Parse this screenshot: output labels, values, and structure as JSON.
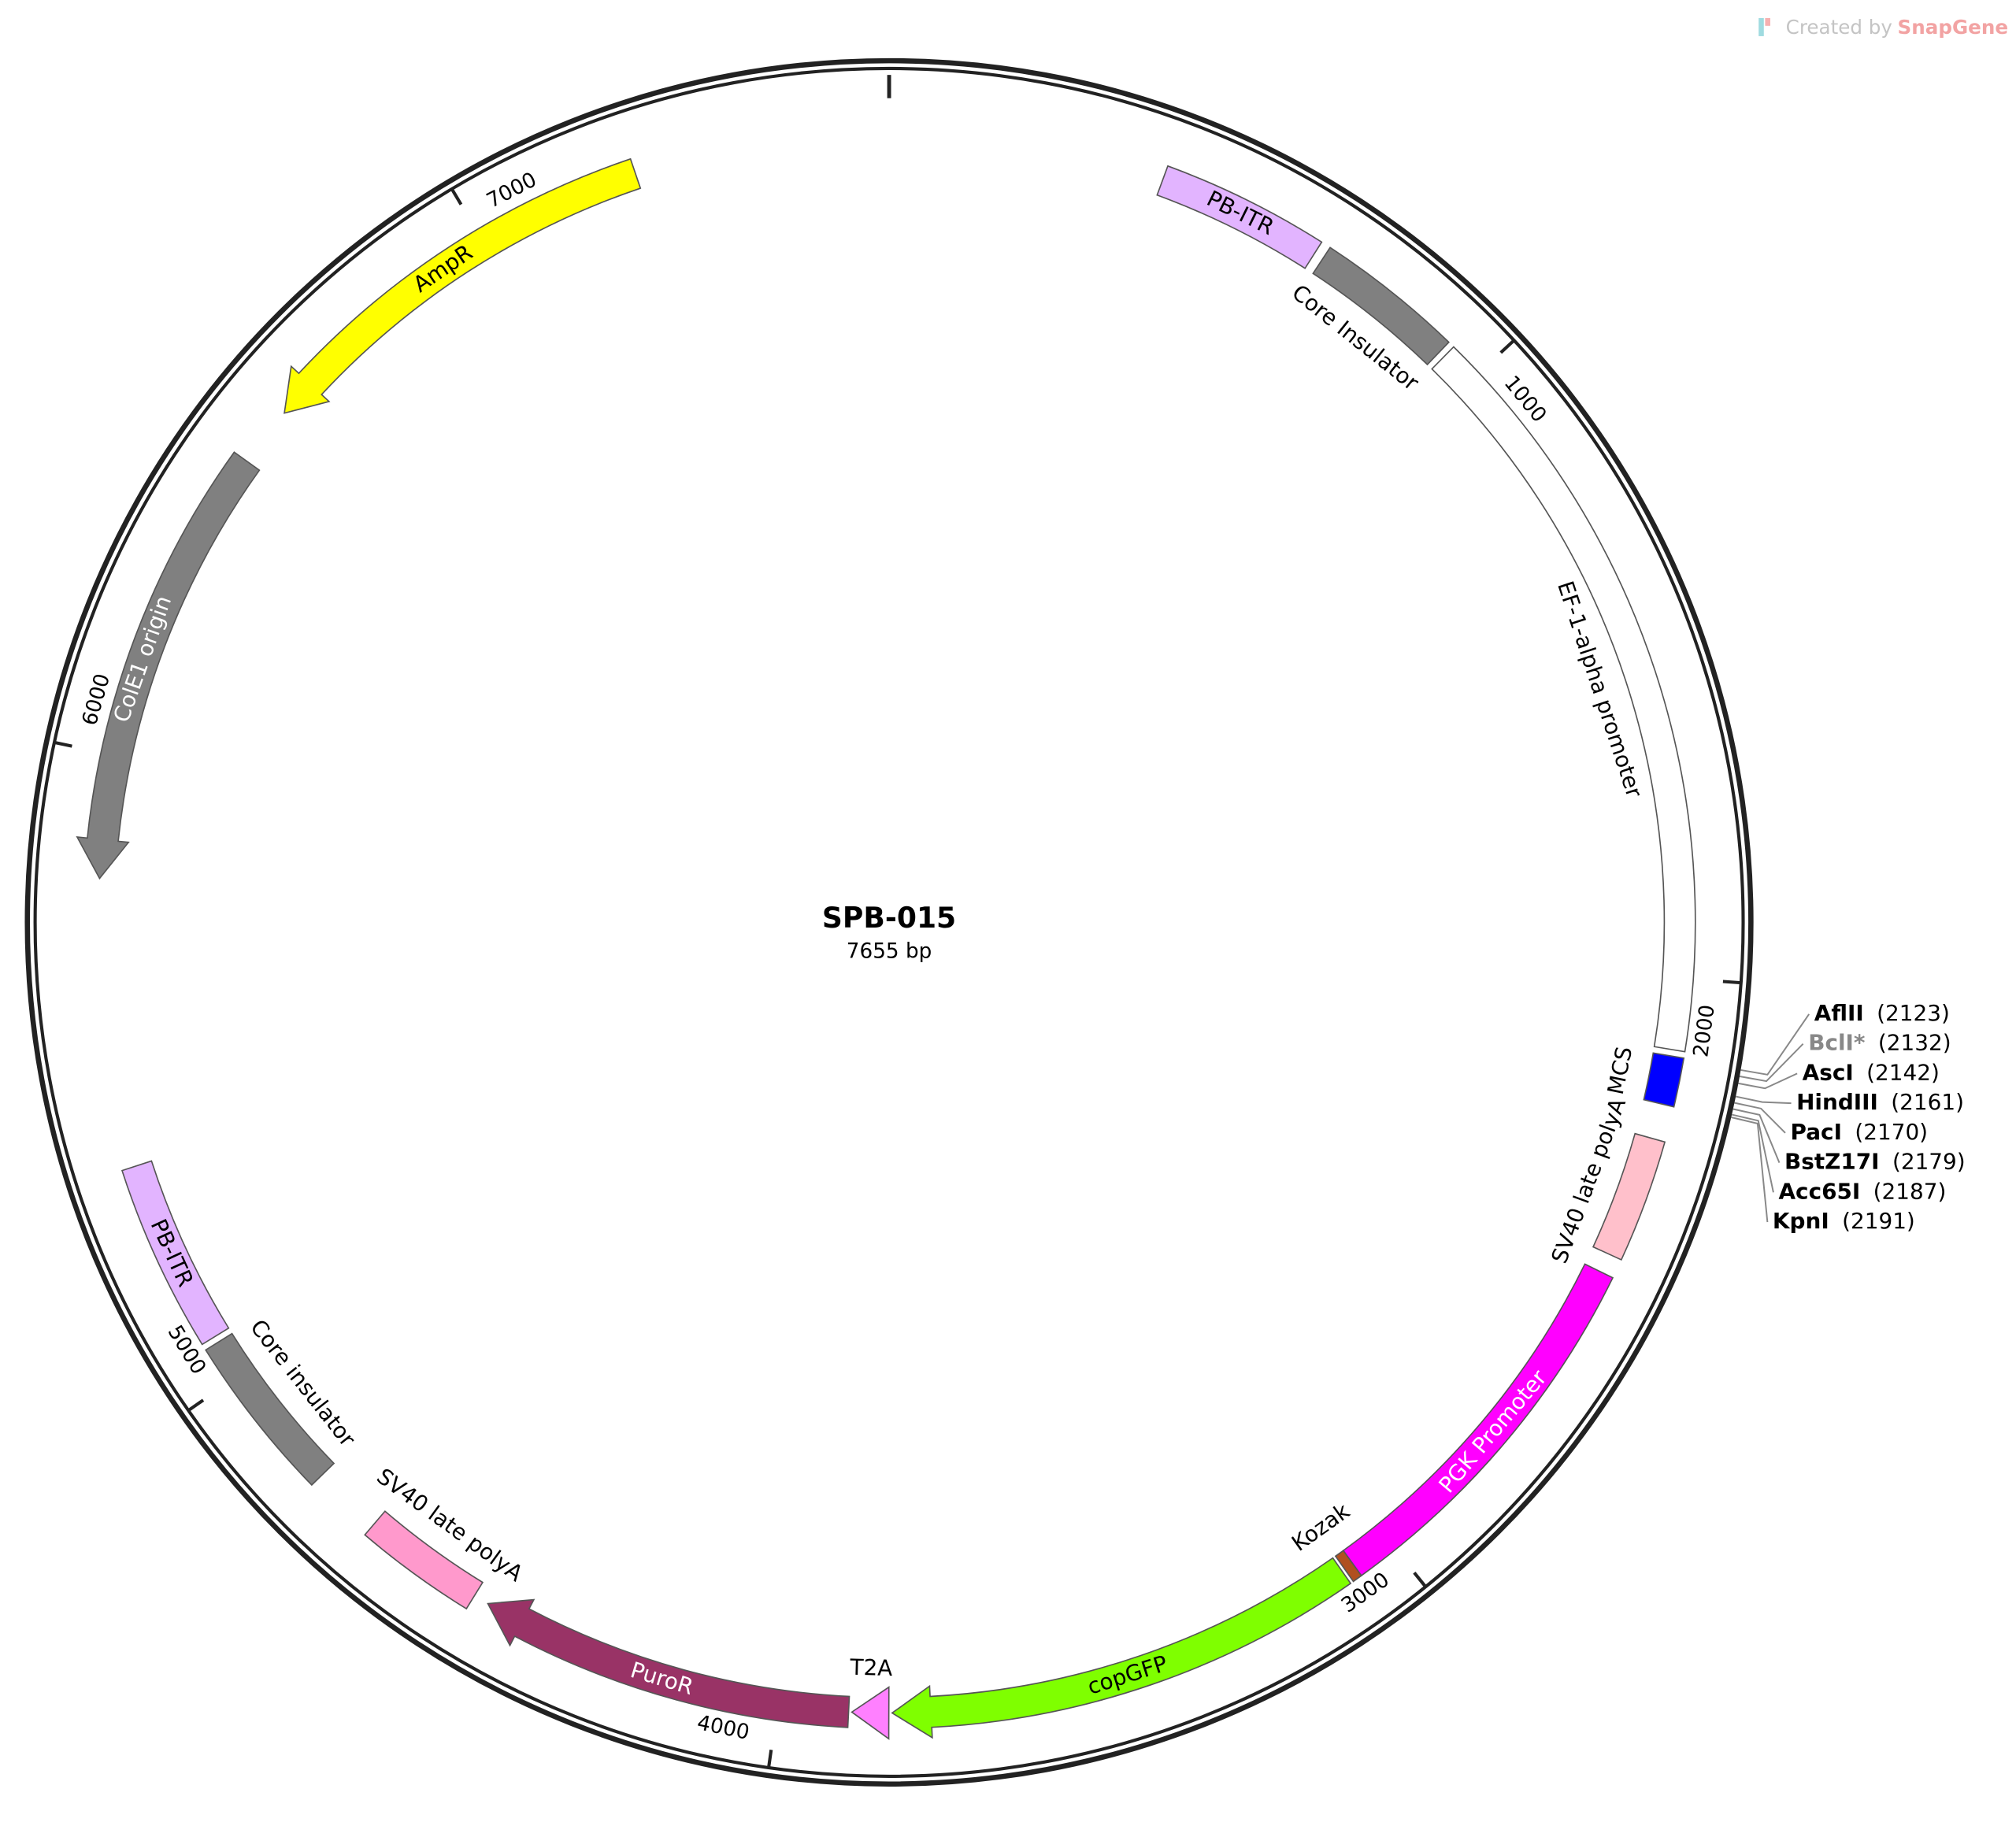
{
  "logo": {
    "prefix": "Created by",
    "brand": "SnapGene"
  },
  "title": "SPB-015",
  "length": "7655 bp",
  "ticks": [
    "1000",
    "2000",
    "3000",
    "4000",
    "5000",
    "6000",
    "7000"
  ],
  "features": [
    {
      "label": "PB-ITR",
      "color": "#e2b4ff"
    },
    {
      "label": "Core Insulator",
      "color": "#808080"
    },
    {
      "label": "EF-1-alpha promoter",
      "color": "#ffffff"
    },
    {
      "label": "MCS",
      "color": "#0000ff"
    },
    {
      "label": "SV40 late polyA",
      "color": "#ffc0cb"
    },
    {
      "label": "PGK Promoter",
      "color": "#ff00ff"
    },
    {
      "label": "Kozak",
      "color": "#b05020"
    },
    {
      "label": "copGFP",
      "color": "#7fff00"
    },
    {
      "label": "T2A",
      "color": "#ff80ff"
    },
    {
      "label": "PuroR",
      "color": "#993366"
    },
    {
      "label": "SV40 late polyA",
      "color": "#ff99cc"
    },
    {
      "label": "Core insulator",
      "color": "#808080"
    },
    {
      "label": "PB-ITR",
      "color": "#e2b4ff"
    },
    {
      "label": "ColE1 origin",
      "color": "#808080"
    },
    {
      "label": "AmpR",
      "color": "#ffff00"
    }
  ],
  "sites": [
    {
      "name": "AflII",
      "position": "(2123)"
    },
    {
      "name": "BclI*",
      "position": "(2132)",
      "muted": true
    },
    {
      "name": "AscI",
      "position": "(2142)"
    },
    {
      "name": "HindIII",
      "position": "(2161)"
    },
    {
      "name": "PacI",
      "position": "(2170)"
    },
    {
      "name": "BstZ17I",
      "position": "(2179)"
    },
    {
      "name": "Acc65I",
      "position": "(2187)"
    },
    {
      "name": "KpnI",
      "position": "(2191)"
    }
  ]
}
